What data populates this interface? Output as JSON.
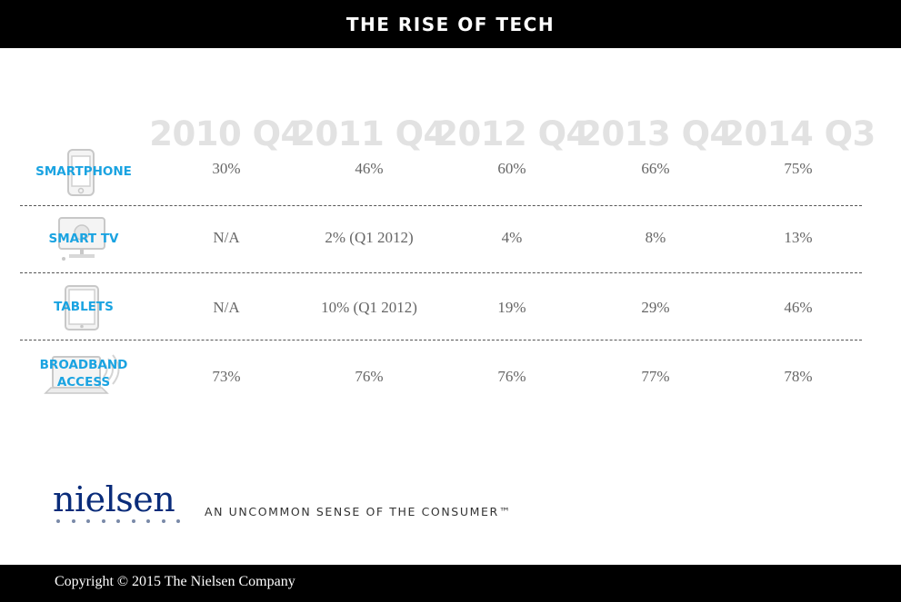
{
  "header": {
    "title": "THE RISE OF TECH"
  },
  "chart_data": {
    "type": "table",
    "columns": [
      "2010 Q4",
      "2011 Q4",
      "2012 Q4",
      "2013 Q4",
      "2014 Q3"
    ],
    "rows": [
      {
        "label": "SMARTPHONE",
        "icon": "smartphone-icon",
        "values": [
          "30%",
          "46%",
          "60%",
          "66%",
          "75%"
        ]
      },
      {
        "label": "SMART TV",
        "icon": "smart-tv-icon",
        "values": [
          "N/A",
          "2% (Q1 2012)",
          "4%",
          "8%",
          "13%"
        ]
      },
      {
        "label": "TABLETS",
        "icon": "tablet-icon",
        "values": [
          "N/A",
          "10% (Q1 2012)",
          "19%",
          "29%",
          "46%"
        ]
      },
      {
        "label_lines": [
          "BROADBAND",
          "ACCESS"
        ],
        "icon": "broadband-laptop-icon",
        "values": [
          "73%",
          "76%",
          "76%",
          "77%",
          "78%"
        ]
      }
    ]
  },
  "brand": {
    "logo_text": "nielsen",
    "tagline": "AN UNCOMMON SENSE OF THE CONSUMER™"
  },
  "footer": {
    "copyright": "Copyright © 2015 The Nielsen Company"
  },
  "colors": {
    "label_blue": "#1aa3e1",
    "header_gray": "#e2e2e2",
    "logo_navy": "#0a2c7a"
  }
}
